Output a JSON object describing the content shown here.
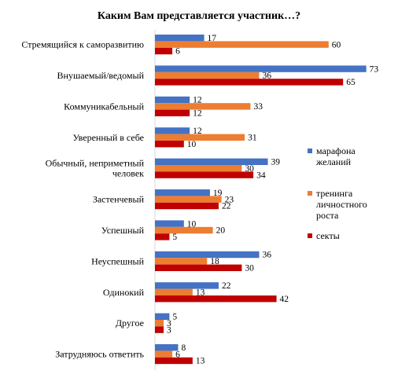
{
  "chart_data": {
    "type": "bar",
    "orientation": "horizontal",
    "title": "Каким Вам представляется участник…?",
    "categories": [
      [
        "Стремящийся к саморазвитию"
      ],
      [
        "Внушаемый/ведомый"
      ],
      [
        "Коммуникабельный"
      ],
      [
        "Уверенный в себе"
      ],
      [
        "Обычный, неприметный",
        "человек"
      ],
      [
        "Застенчевый"
      ],
      [
        "Успешный"
      ],
      [
        "Неуспешный"
      ],
      [
        "Одинокий"
      ],
      [
        "Другое"
      ],
      [
        "Затрудняюсь ответить"
      ]
    ],
    "series": [
      {
        "name": [
          "марафона",
          "желаний"
        ],
        "color": "#4472c4",
        "values": [
          17,
          73,
          12,
          12,
          39,
          19,
          10,
          36,
          22,
          5,
          8
        ]
      },
      {
        "name": [
          "тренинга",
          "личностного",
          "роста"
        ],
        "color": "#ed7d31",
        "values": [
          60,
          36,
          33,
          31,
          30,
          23,
          20,
          18,
          13,
          3,
          6
        ]
      },
      {
        "name": [
          "секты"
        ],
        "color": "#c00000",
        "values": [
          6,
          65,
          12,
          10,
          34,
          22,
          5,
          30,
          42,
          3,
          13
        ]
      }
    ],
    "xlim": [
      0,
      80
    ],
    "grid": false,
    "legend_position": "right"
  }
}
